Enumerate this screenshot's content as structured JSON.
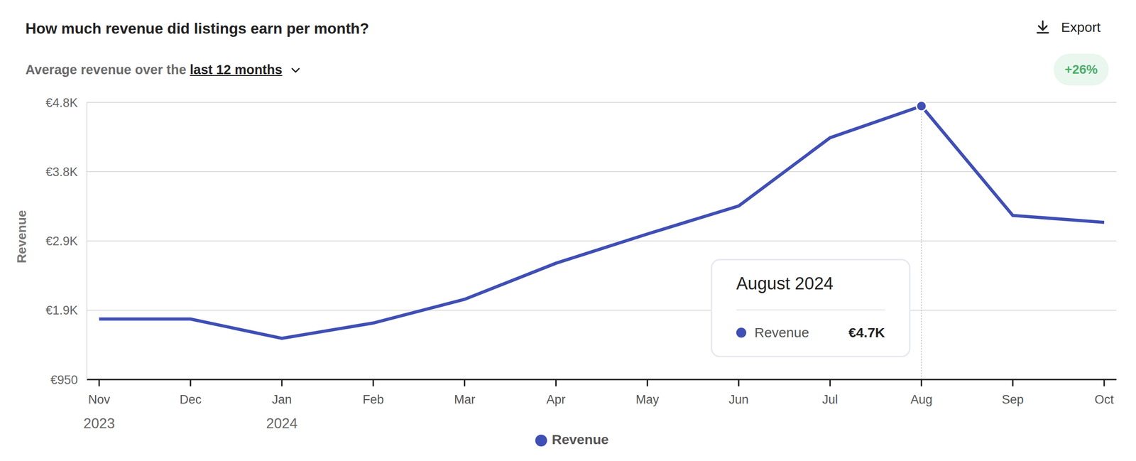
{
  "chart_data": {
    "type": "line",
    "title": "How much revenue did listings earn per month?",
    "subtitle": "Average revenue over the",
    "period": "last 12 months",
    "export_label": "Export",
    "change_label": "+26%",
    "y_label": "Revenue",
    "categories": [
      "Nov 2023",
      "Dec",
      "Jan 2024",
      "Feb",
      "Mar",
      "Apr",
      "May",
      "Jun",
      "Jul",
      "Aug",
      "Sep",
      "Oct"
    ],
    "series": [
      {
        "name": "Revenue",
        "color": "#3f4fb4",
        "values": [
          1780,
          1780,
          1515,
          1725,
          2050,
          2545,
          2945,
          3330,
          4265,
          4700,
          3200,
          3105
        ]
      }
    ],
    "ylim": [
      950,
      4750
    ],
    "yticks": [
      {
        "value": 950,
        "label": "€950"
      },
      {
        "value": 1900,
        "label": "€1.9K"
      },
      {
        "value": 2850,
        "label": "€2.9K"
      },
      {
        "value": 3800,
        "label": "€3.8K"
      },
      {
        "value": 4750,
        "label": "€4.8K"
      }
    ],
    "grid": true,
    "legend": "bottom",
    "tooltip": {
      "title": "August 2024",
      "series": "Revenue",
      "category": "Aug",
      "value": 4700,
      "value_label": "€4.7K"
    }
  }
}
